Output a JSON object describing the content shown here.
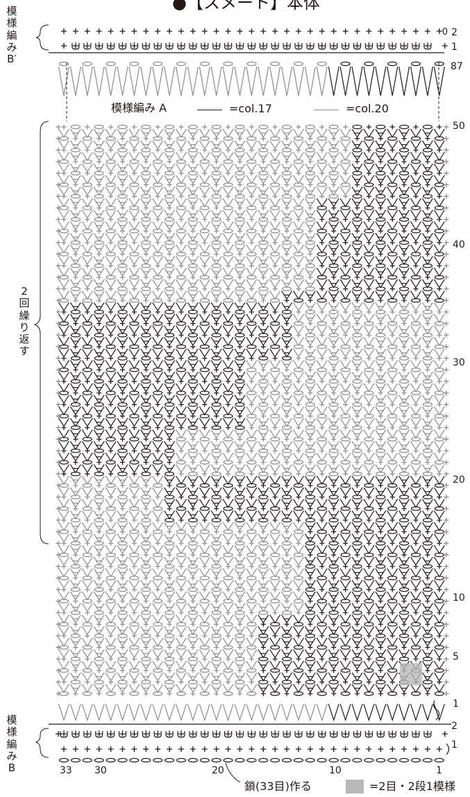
{
  "title": "●【スメート】本体",
  "section_b_prime": {
    "label_lines": [
      "模",
      "様",
      "編",
      "み",
      "B′"
    ],
    "row_labels": [
      "2",
      "1"
    ]
  },
  "section_a": {
    "legend_title": "模様編み A",
    "legend_dark": "=col.17",
    "legend_light": "=col.20",
    "top_row": "87",
    "row_labels": [
      "50",
      "40",
      "30",
      "20",
      "10",
      "5",
      "1"
    ],
    "repeat_label_lines": [
      "2",
      "回",
      "繰",
      "り",
      "返",
      "す"
    ]
  },
  "section_b": {
    "label_lines": [
      "模",
      "様",
      "編",
      "み",
      "B"
    ],
    "row_labels": [
      "2",
      "1"
    ]
  },
  "stitch_counts": [
    "33",
    "30",
    "20",
    "10",
    "1"
  ],
  "chain_note": "鎖(33目)作る",
  "motif_note": "=2目・2段1模様",
  "colors": {
    "dark": "#231815",
    "light": "#8c8c8c",
    "motif": "#b9b9b9"
  },
  "icons": [
    "chain-stitch-icon",
    "single-crochet-icon",
    "back-loop-single-crochet-icon",
    "double-crochet-icon",
    "lift-chain-icon",
    "repeat-brace-icon"
  ]
}
